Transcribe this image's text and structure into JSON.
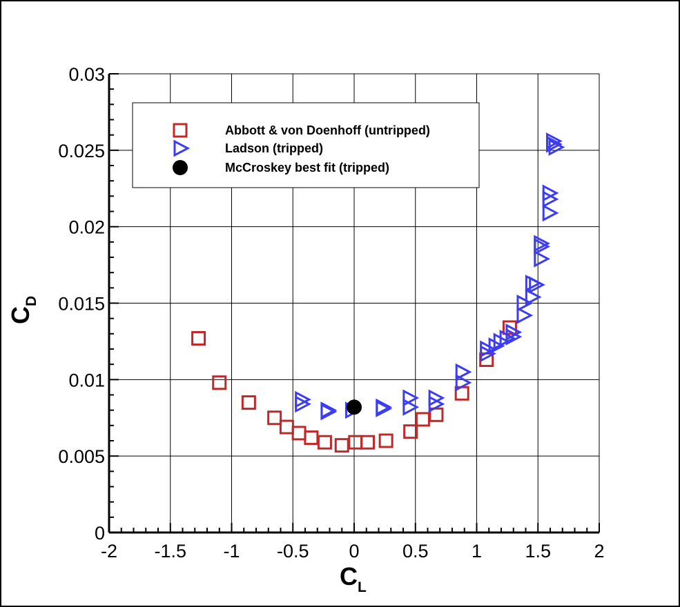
{
  "chart_data": {
    "type": "scatter",
    "title": "",
    "xlabel": {
      "main": "C",
      "sub": "L"
    },
    "ylabel": {
      "main": "C",
      "sub": "D"
    },
    "xlim": [
      -2,
      2
    ],
    "ylim": [
      0,
      0.03
    ],
    "xticks": [
      -2,
      -1.5,
      -1,
      -0.5,
      0,
      0.5,
      1,
      1.5,
      2
    ],
    "xtick_labels": [
      "-2",
      "-1.5",
      "-1",
      "-0.5",
      "0",
      "0.5",
      "1",
      "1.5",
      "2"
    ],
    "yticks": [
      0,
      0.005,
      0.01,
      0.015,
      0.02,
      0.025,
      0.03
    ],
    "ytick_labels": [
      "0",
      "0.005",
      "0.01",
      "0.015",
      "0.02",
      "0.025",
      "0.03"
    ],
    "grid": true,
    "legend_position": "top-left",
    "series": [
      {
        "name": "Abbott & von Doenhoff (untripped)",
        "marker": "open-square",
        "color": "#c0282a",
        "points": [
          [
            -1.27,
            0.0127
          ],
          [
            -1.1,
            0.0098
          ],
          [
            -0.86,
            0.0085
          ],
          [
            -0.65,
            0.0075
          ],
          [
            -0.55,
            0.0069
          ],
          [
            -0.45,
            0.0065
          ],
          [
            -0.35,
            0.0062
          ],
          [
            -0.24,
            0.0059
          ],
          [
            -0.1,
            0.0057
          ],
          [
            0.01,
            0.0059
          ],
          [
            0.11,
            0.0059
          ],
          [
            0.26,
            0.006
          ],
          [
            0.46,
            0.0066
          ],
          [
            0.56,
            0.0074
          ],
          [
            0.67,
            0.0077
          ],
          [
            0.88,
            0.0091
          ],
          [
            1.08,
            0.0113
          ],
          [
            1.27,
            0.0134
          ]
        ]
      },
      {
        "name": "Ladson (tripped)",
        "marker": "open-triangle-right",
        "color": "#3c3cf0",
        "points": [
          [
            -0.43,
            0.0087
          ],
          [
            -0.43,
            0.0084
          ],
          [
            -0.22,
            0.008
          ],
          [
            -0.22,
            0.0079
          ],
          [
            -0.02,
            0.008
          ],
          [
            0.23,
            0.0082
          ],
          [
            0.23,
            0.0081
          ],
          [
            0.45,
            0.0088
          ],
          [
            0.45,
            0.0082
          ],
          [
            0.66,
            0.0088
          ],
          [
            0.66,
            0.0084
          ],
          [
            0.88,
            0.0105
          ],
          [
            0.88,
            0.0098
          ],
          [
            1.08,
            0.012
          ],
          [
            1.08,
            0.0117
          ],
          [
            1.15,
            0.0122
          ],
          [
            1.19,
            0.0125
          ],
          [
            1.24,
            0.0127
          ],
          [
            1.29,
            0.0128
          ],
          [
            1.29,
            0.0131
          ],
          [
            1.38,
            0.0142
          ],
          [
            1.38,
            0.015
          ],
          [
            1.45,
            0.0154
          ],
          [
            1.45,
            0.0163
          ],
          [
            1.48,
            0.0162
          ],
          [
            1.52,
            0.0189
          ],
          [
            1.52,
            0.0187
          ],
          [
            1.52,
            0.0179
          ],
          [
            1.59,
            0.0222
          ],
          [
            1.59,
            0.0218
          ],
          [
            1.59,
            0.0209
          ],
          [
            1.62,
            0.0256
          ],
          [
            1.62,
            0.0254
          ],
          [
            1.64,
            0.0252
          ]
        ]
      },
      {
        "name": "McCroskey best fit (tripped)",
        "marker": "filled-circle",
        "color": "#000000",
        "points": [
          [
            0.0,
            0.0082
          ]
        ]
      }
    ]
  }
}
